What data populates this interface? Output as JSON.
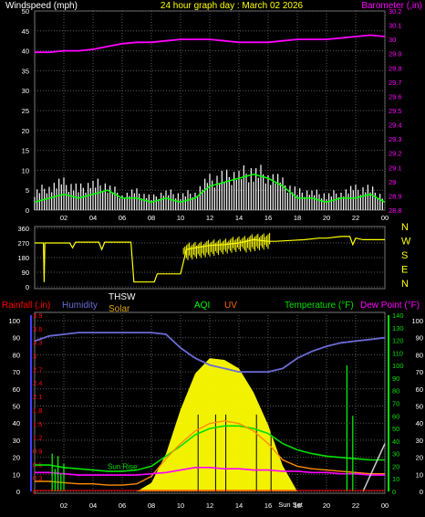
{
  "header": {
    "left_label": "Windspeed (mph)",
    "center_label": "24 hour graph day : March 02 2026",
    "right_label": "Barometer (,in)"
  },
  "bottom_header": {
    "rainfall": "Rainfall (,in)",
    "humidity": "Humidity",
    "thsw": "THSW",
    "solar": "Solar",
    "aqi": "AQI",
    "uv": "UV",
    "temperature": "Temperature (°F)",
    "dew_point": "Dew Point (°F)"
  },
  "colors": {
    "background": "#000000",
    "grid": "#5a5a5a",
    "wind": "#ffffff",
    "wind_gust": "#00ff00",
    "barometer": "#ff00ff",
    "direction": "#ffff00",
    "humidity": "#6b6bd6",
    "solar": "#ffff00",
    "temperature": "#00e000",
    "dew_point": "#ff00ff",
    "thsw": "#ff8c00",
    "uv": "#ff6a00",
    "rainfall": "#ff0000",
    "aqi": "#00ff00",
    "axis_blue": "#3f3fff",
    "axis_green": "#00e000"
  },
  "chart_data": [
    {
      "type": "line",
      "title": "24 hour graph day : March 02 2026",
      "xlabel": "",
      "ylabel": "Windspeed (mph)",
      "y2label": "Barometer (,in)",
      "x_ticks": [
        "02",
        "04",
        "06",
        "08",
        "10",
        "12",
        "14",
        "16",
        "18",
        "20",
        "22",
        "00"
      ],
      "ylim": [
        0,
        50
      ],
      "y_ticks": [
        "0",
        "5",
        "10",
        "15",
        "20",
        "25",
        "30",
        "35",
        "40",
        "45",
        "50"
      ],
      "y2lim": [
        28.8,
        30.2
      ],
      "y2_ticks": [
        "28.8",
        "28.9",
        "29",
        "29.1",
        "29.2",
        "29.3",
        "29.4",
        "29.5",
        "29.6",
        "29.7",
        "29.8",
        "29.9",
        "30",
        "30.1",
        "30.2"
      ],
      "x": [
        0,
        1,
        2,
        3,
        4,
        5,
        6,
        7,
        8,
        9,
        10,
        11,
        12,
        13,
        14,
        15,
        16,
        17,
        18,
        19,
        20,
        21,
        22,
        23,
        24
      ],
      "series": [
        {
          "name": "Windspeed",
          "values": [
            2,
            3,
            4,
            3,
            4,
            5,
            3,
            3,
            2,
            3,
            2,
            3,
            6,
            7,
            8,
            9,
            8,
            6,
            3,
            3,
            2,
            3,
            3,
            4,
            2
          ]
        },
        {
          "name": "Windspeed gust",
          "values": [
            6,
            8,
            9,
            7,
            9,
            8,
            5,
            6,
            4,
            6,
            5,
            6,
            10,
            11,
            12,
            13,
            12,
            9,
            6,
            6,
            5,
            6,
            7,
            7,
            4
          ]
        },
        {
          "name": "Barometer",
          "values": [
            29.91,
            29.91,
            29.92,
            29.92,
            29.93,
            29.95,
            29.97,
            29.98,
            29.98,
            29.99,
            30.0,
            30.0,
            30.0,
            29.99,
            29.98,
            29.98,
            29.98,
            29.99,
            30.0,
            30.0,
            30.0,
            30.01,
            30.02,
            30.03,
            30.02
          ]
        }
      ]
    },
    {
      "type": "line",
      "title": "",
      "ylabel": "Wind Direction",
      "y_ticks": [
        "0",
        "90",
        "180",
        "270",
        "360"
      ],
      "y_labels_right": [
        "N",
        "W",
        "S",
        "E",
        "N"
      ],
      "ylim": [
        0,
        360
      ],
      "x": [
        0,
        0.6,
        0.65,
        0.7,
        2.4,
        2.6,
        2.8,
        4.4,
        4.6,
        4.8,
        6.6,
        6.8,
        8.2,
        8.4,
        9.8,
        10.0,
        10.4,
        11.0,
        12.0,
        13.0,
        14.0,
        15.0,
        16.0,
        16.5,
        17.5,
        18.5,
        19.5,
        20.0,
        21.0,
        21.6,
        21.8,
        22.0,
        22.5,
        24.0
      ],
      "series": [
        {
          "name": "Wind Direction",
          "values": [
            270,
            270,
            30,
            270,
            270,
            240,
            275,
            275,
            230,
            275,
            275,
            30,
            30,
            80,
            80,
            80,
            230,
            240,
            255,
            260,
            270,
            290,
            280,
            280,
            285,
            290,
            300,
            300,
            310,
            310,
            260,
            300,
            290,
            290
          ]
        }
      ]
    },
    {
      "type": "line",
      "title": "",
      "y_left_rain_ticks": [
        "0",
        "0.3",
        "0.6",
        "0.9",
        "1.2",
        "1.5",
        "1.8",
        "2.1",
        "2.4",
        "2.7",
        "3",
        "3.3",
        "3.6",
        "3.9"
      ],
      "y_left_hum_ticks": [
        "0",
        "10",
        "20",
        "30",
        "40",
        "50",
        "60",
        "70",
        "80",
        "90",
        "100"
      ],
      "y_right_green_ticks": [
        "0",
        "10",
        "20",
        "30",
        "40",
        "50",
        "60",
        "70",
        "80",
        "90",
        "100",
        "110",
        "120",
        "130",
        "140"
      ],
      "y_right_white_ticks": [
        "0",
        "10",
        "20",
        "30",
        "40",
        "50",
        "60",
        "70",
        "80",
        "90",
        "100"
      ],
      "ylim_rain": [
        0,
        3.9
      ],
      "ylim_humidity": [
        0,
        100
      ],
      "ylim_temp": [
        0,
        140
      ],
      "annotations": [
        "Sun Rise",
        "Sun Set"
      ],
      "x": [
        0,
        1,
        2,
        3,
        4,
        5,
        6,
        7,
        8,
        9,
        10,
        11,
        12,
        13,
        14,
        15,
        16,
        17,
        18,
        19,
        20,
        21,
        22,
        23,
        24
      ],
      "series": [
        {
          "name": "Humidity",
          "values": [
            88,
            91,
            92,
            93,
            93,
            93,
            93,
            93,
            93,
            92,
            84,
            78,
            74,
            72,
            70,
            70,
            70,
            72,
            78,
            82,
            85,
            87,
            88,
            89,
            90
          ]
        },
        {
          "name": "Solar",
          "values": [
            0,
            0,
            0,
            0,
            0,
            0,
            0,
            0,
            5,
            20,
            50,
            70,
            78,
            76,
            70,
            60,
            40,
            15,
            0,
            0,
            0,
            0,
            0,
            0,
            0
          ]
        },
        {
          "name": "Temperature",
          "values": [
            21,
            21,
            19,
            18,
            17,
            16,
            16,
            17,
            20,
            28,
            36,
            45,
            50,
            52,
            52,
            50,
            46,
            38,
            33,
            30,
            28,
            27,
            26,
            25,
            25
          ]
        },
        {
          "name": "Dew Point",
          "values": [
            15,
            15,
            14,
            13,
            13,
            13,
            13,
            13,
            14,
            15,
            17,
            19,
            19,
            18,
            18,
            17,
            17,
            16,
            16,
            15,
            15,
            14,
            14,
            13,
            13
          ]
        },
        {
          "name": "THSW",
          "values": [
            8,
            8,
            7,
            6,
            6,
            5,
            5,
            6,
            12,
            26,
            38,
            48,
            54,
            56,
            54,
            48,
            38,
            25,
            20,
            18,
            17,
            16,
            15,
            14,
            14
          ]
        }
      ]
    }
  ]
}
